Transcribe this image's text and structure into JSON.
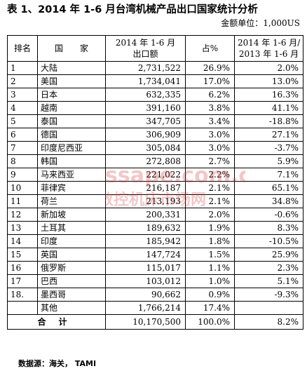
{
  "title": "表 1、2014 年 1-6 月台湾机械产品出口国家统计分析",
  "unit": "金额单位：1,000US",
  "table": {
    "headers": {
      "rank": "排名",
      "country": "国　　家",
      "value_line1": "2014 年 1-6 月",
      "value_line2": "出口额",
      "share": "占%",
      "growth_line1": "2014 年 1-6 月/",
      "growth_line2": "2013 年 1-6 月"
    },
    "rows": [
      {
        "rank": "1",
        "country": "大陆",
        "value": "2,731,522",
        "share": "26.9%",
        "growth": "2.0%"
      },
      {
        "rank": "2",
        "country": "美国",
        "value": "1,734,041",
        "share": "17.0%",
        "growth": "13.0%"
      },
      {
        "rank": "3",
        "country": "日本",
        "value": "632,335",
        "share": "6.2%",
        "growth": "16.3%"
      },
      {
        "rank": "4",
        "country": "越南",
        "value": "391,160",
        "share": "3.8%",
        "growth": "41.1%"
      },
      {
        "rank": "5",
        "country": "泰国",
        "value": "347,705",
        "share": "3.4%",
        "growth": "-18.8%"
      },
      {
        "rank": "6",
        "country": "德国",
        "value": "306,909",
        "share": "3.0%",
        "growth": "27.1%"
      },
      {
        "rank": "7",
        "country": "印度尼西亚",
        "value": "305,084",
        "share": "3.0%",
        "growth": "-3.7%"
      },
      {
        "rank": "8",
        "country": "韩国",
        "value": "272,808",
        "share": "2.7%",
        "growth": "5.9%"
      },
      {
        "rank": "9",
        "country": "马来西亚",
        "value": "221,022",
        "share": "2.2%",
        "growth": "7.1%"
      },
      {
        "rank": "10",
        "country": "菲律宾",
        "value": "216,187",
        "share": "2.1%",
        "growth": "65.1%"
      },
      {
        "rank": "11",
        "country": "荷兰",
        "value": "213,193",
        "share": "2.1%",
        "growth": "34.8%"
      },
      {
        "rank": "12",
        "country": "新加坡",
        "value": "200,331",
        "share": "2.0%",
        "growth": "-0.6%"
      },
      {
        "rank": "13",
        "country": "土耳其",
        "value": "189,632",
        "share": "1.9%",
        "growth": "8.3%"
      },
      {
        "rank": "14",
        "country": "印度",
        "value": "185,942",
        "share": "1.8%",
        "growth": "-10.5%"
      },
      {
        "rank": "15",
        "country": "英国",
        "value": "147,724",
        "share": "1.5%",
        "growth": "25.9%"
      },
      {
        "rank": "16",
        "country": "俄罗斯",
        "value": "115,017",
        "share": "1.1%",
        "growth": "2.3%"
      },
      {
        "rank": "17",
        "country": "巴西",
        "value": "103,012",
        "share": "1.0%",
        "growth": "5.1%"
      },
      {
        "rank": "18.",
        "country": "墨西哥",
        "value": "90,662",
        "share": "0.9%",
        "growth": "-9.3%"
      },
      {
        "rank": "",
        "country": "其他",
        "value": "1,766,214",
        "share": "17.4%",
        "growth": ""
      }
    ],
    "total": {
      "label": "合计",
      "value": "10,170,500",
      "share": "100.0%",
      "growth": "8.2%"
    }
  },
  "source": "数据源：海关， TAMI",
  "watermark": {
    "text": "ssape.com.cn",
    "subtext": "数控机床市场网",
    "color": "#d23a3a"
  }
}
